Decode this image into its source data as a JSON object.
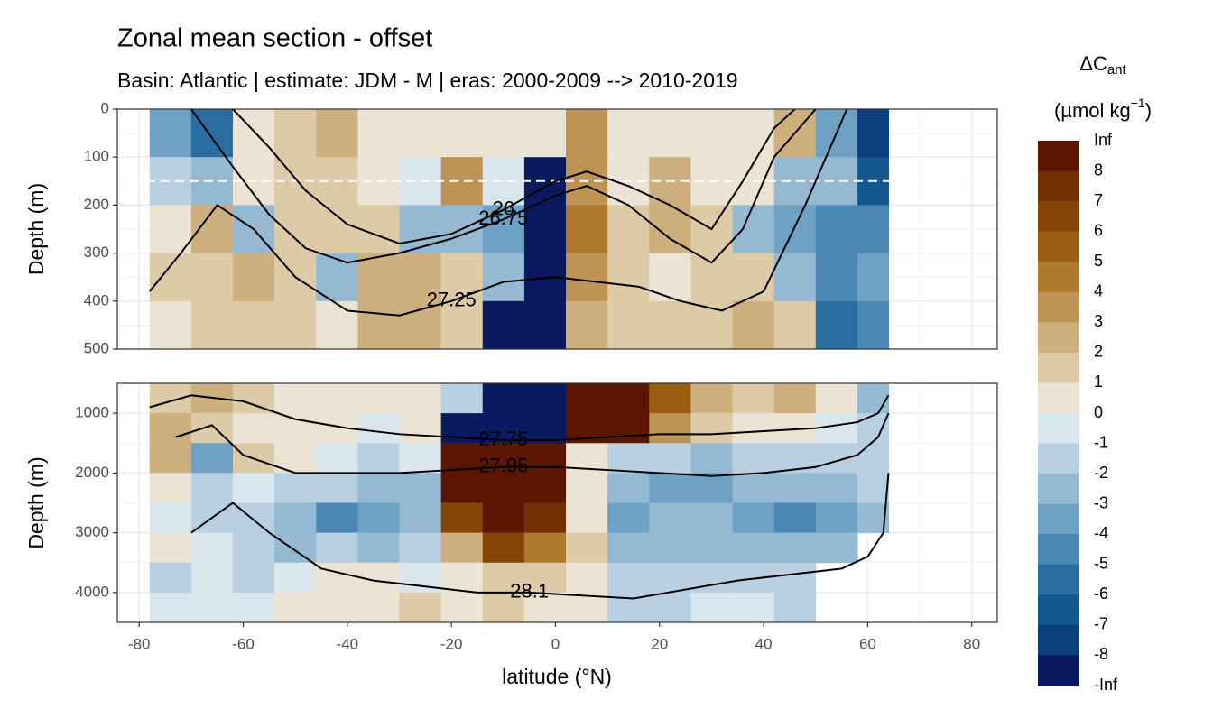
{
  "chart_data": {
    "type": "contour",
    "title": "Zonal mean section - offset",
    "subtitle": "Basin: Atlantic | estimate: JDM - M | eras: 2000-2009 --> 2010-2019",
    "x_label": "latitude (°N)",
    "xlim": [
      -84.2,
      84.9
    ],
    "xticks": [
      -80,
      -60,
      -40,
      -20,
      0,
      20,
      40,
      60,
      80
    ],
    "grid": true,
    "x_edges": [
      -78,
      -70,
      -62,
      -54,
      -46,
      -38,
      -30,
      -22,
      -14,
      -6,
      2,
      10,
      18,
      26,
      34,
      42,
      50,
      58,
      64
    ],
    "panels": [
      {
        "y_label": "Depth (m)",
        "ylim": [
          0,
          500
        ],
        "yticks": [
          0,
          100,
          200,
          300,
          400,
          500
        ],
        "reference_depth": 150,
        "y_edges": [
          0,
          100,
          200,
          300,
          400,
          500
        ],
        "z": [
          [
            -3,
            -5,
            1,
            2,
            3,
            1,
            1,
            1,
            1,
            1,
            4,
            1,
            1,
            1,
            1,
            3,
            -3,
            -7
          ],
          [
            -1,
            -2,
            1,
            2,
            2,
            1,
            0,
            4,
            0,
            -8,
            4,
            1,
            3,
            1,
            1,
            -2,
            -2,
            -6
          ],
          [
            1,
            3,
            -2,
            2,
            2,
            2,
            -2,
            -2,
            -3,
            -9,
            5,
            2,
            3,
            2,
            -2,
            -3,
            -4,
            -4
          ],
          [
            2,
            2,
            3,
            2,
            -2,
            3,
            3,
            2,
            -2,
            -9,
            4,
            2,
            1,
            2,
            2,
            -2,
            -4,
            -3
          ],
          [
            1,
            2,
            2,
            2,
            1,
            3,
            3,
            2,
            -9,
            -9,
            3,
            2,
            2,
            2,
            3,
            2,
            -5,
            -4
          ]
        ],
        "contours": [
          {
            "level": 26,
            "x": [
              -62,
              -55,
              -48,
              -40,
              -30,
              -20,
              -10,
              0,
              6,
              14,
              22,
              30,
              36,
              42,
              46
            ],
            "y": [
              0,
              80,
              170,
              240,
              280,
              260,
              210,
              150,
              130,
              160,
              200,
              250,
              150,
              40,
              0
            ]
          },
          {
            "level": 26.75,
            "x": [
              -70,
              -62,
              -55,
              -48,
              -40,
              -30,
              -20,
              -10,
              0,
              6,
              14,
              22,
              30,
              36,
              42,
              50
            ],
            "y": [
              0,
              120,
              220,
              290,
              320,
              300,
              270,
              230,
              180,
              160,
              200,
              270,
              320,
              250,
              100,
              0
            ]
          },
          {
            "level": 27.25,
            "x": [
              -78,
              -72,
              -65,
              -58,
              -50,
              -40,
              -30,
              -20,
              -10,
              0,
              8,
              16,
              24,
              32,
              40,
              48,
              56
            ],
            "y": [
              380,
              300,
              200,
              250,
              350,
              420,
              430,
              400,
              360,
              350,
              360,
              370,
              400,
              420,
              380,
              200,
              0
            ]
          }
        ]
      },
      {
        "y_label": "Depth (m)",
        "ylim": [
          500,
          4500
        ],
        "yticks": [
          1000,
          2000,
          3000,
          4000
        ],
        "y_edges": [
          500,
          1000,
          1500,
          2000,
          2500,
          3000,
          3500,
          4000,
          4500
        ],
        "z": [
          [
            2,
            3,
            2,
            1,
            1,
            1,
            1,
            -1,
            -9,
            -9,
            9,
            9,
            6,
            3,
            2,
            3,
            1,
            -2
          ],
          [
            3,
            2,
            1,
            1,
            1,
            0,
            1,
            -8,
            -9,
            -9,
            9,
            9,
            4,
            2,
            1,
            1,
            0,
            -1
          ],
          [
            3,
            -3,
            2,
            1,
            0,
            -1,
            0,
            9,
            9,
            9,
            1,
            -1,
            -1,
            -2,
            -1,
            -1,
            -1,
            -1
          ],
          [
            1,
            -1,
            0,
            -1,
            -1,
            -2,
            -2,
            9,
            9,
            9,
            1,
            -2,
            -3,
            -3,
            -2,
            -2,
            -2,
            -1
          ],
          [
            0,
            -1,
            -1,
            -2,
            -4,
            -3,
            -2,
            7,
            9,
            8,
            1,
            -3,
            -2,
            -2,
            -3,
            -4,
            -3,
            -2
          ],
          [
            1,
            0,
            -1,
            -2,
            -1,
            -2,
            -1,
            3,
            7,
            5,
            2,
            -2,
            -2,
            -2,
            -2,
            -2,
            -2,
            null
          ],
          [
            -1,
            0,
            -1,
            0,
            1,
            1,
            0,
            1,
            2,
            2,
            1,
            -1,
            -1,
            -1,
            -1,
            -1,
            null,
            null
          ],
          [
            0,
            0,
            0,
            1,
            1,
            1,
            2,
            1,
            2,
            1,
            1,
            -1,
            -1,
            0,
            0,
            -1,
            null,
            null
          ]
        ],
        "contours": [
          {
            "level": 27.75,
            "x": [
              -78,
              -70,
              -60,
              -50,
              -40,
              -30,
              -20,
              -10,
              0,
              10,
              20,
              30,
              40,
              50,
              58,
              62,
              64
            ],
            "y": [
              900,
              700,
              800,
              1100,
              1250,
              1350,
              1400,
              1450,
              1450,
              1400,
              1350,
              1350,
              1300,
              1250,
              1150,
              1000,
              700
            ]
          },
          {
            "level": 27.95,
            "x": [
              -73,
              -66,
              -60,
              -50,
              -40,
              -30,
              -20,
              -10,
              0,
              10,
              20,
              30,
              40,
              50,
              58,
              62,
              64
            ],
            "y": [
              1400,
              1200,
              1700,
              2000,
              2000,
              2000,
              1950,
              1900,
              1900,
              1950,
              2000,
              2050,
              2000,
              1900,
              1700,
              1400,
              1000
            ]
          },
          {
            "level": 28.1,
            "x": [
              -70,
              -62,
              -55,
              -45,
              -35,
              -25,
              -15,
              -5,
              5,
              15,
              25,
              35,
              45,
              55,
              60,
              63,
              64
            ],
            "y": [
              3000,
              2500,
              3000,
              3600,
              3800,
              3900,
              4000,
              4000,
              4050,
              4100,
              3950,
              3800,
              3700,
              3600,
              3400,
              3000,
              2000
            ]
          }
        ]
      }
    ],
    "colorbar": {
      "title": [
        "ΔC",
        "ant",
        "(µmol kg",
        "−1",
        ")"
      ],
      "levels": [
        "Inf",
        8,
        7,
        6,
        5,
        4,
        3,
        2,
        1,
        0,
        -1,
        -2,
        -3,
        -4,
        -5,
        -6,
        -7,
        -8,
        "-Inf"
      ],
      "colors": [
        "#5b1602",
        "#723004",
        "#864507",
        "#9a5e12",
        "#ad7a2e",
        "#bd9454",
        "#cdb07e",
        "#ddcaa6",
        "#ebe3d3",
        "#dae6ee",
        "#b8d0e1",
        "#95b9d3",
        "#6ea1c3",
        "#4a87b3",
        "#2a6ea1",
        "#135890",
        "#0c3f7e",
        "#0a1a5e"
      ]
    }
  }
}
